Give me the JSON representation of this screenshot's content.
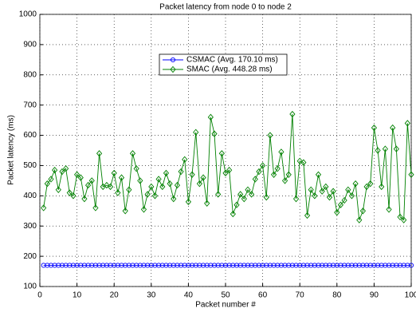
{
  "chart_data": {
    "type": "line",
    "title": "Packet latency from node 0 to node 2",
    "x_label": "Packet number #",
    "y_label": "Packet latency (ms)",
    "x": [
      1,
      2,
      3,
      4,
      5,
      6,
      7,
      8,
      9,
      10,
      11,
      12,
      13,
      14,
      15,
      16,
      17,
      18,
      19,
      20,
      21,
      22,
      23,
      24,
      25,
      26,
      27,
      28,
      29,
      30,
      31,
      32,
      33,
      34,
      35,
      36,
      37,
      38,
      39,
      40,
      41,
      42,
      43,
      44,
      45,
      46,
      47,
      48,
      49,
      50,
      51,
      52,
      53,
      54,
      55,
      56,
      57,
      58,
      59,
      60,
      61,
      62,
      63,
      64,
      65,
      66,
      67,
      68,
      69,
      70,
      71,
      72,
      73,
      74,
      75,
      76,
      77,
      78,
      79,
      80,
      81,
      82,
      83,
      84,
      85,
      86,
      87,
      88,
      89,
      90,
      91,
      92,
      93,
      94,
      95,
      96,
      97,
      98,
      99,
      100
    ],
    "series": [
      {
        "name": "CSMAC (Avg. 170.10 ms)",
        "color": "#0000ff",
        "marker": "circle",
        "values": [
          170.1,
          170.1,
          170.1,
          170.1,
          170.1,
          170.1,
          170.1,
          170.1,
          170.1,
          170.1,
          170.1,
          170.1,
          170.1,
          170.1,
          170.1,
          170.1,
          170.1,
          170.1,
          170.1,
          170.1,
          170.1,
          170.1,
          170.1,
          170.1,
          170.1,
          170.1,
          170.1,
          170.1,
          170.1,
          170.1,
          170.1,
          170.1,
          170.1,
          170.1,
          170.1,
          170.1,
          170.1,
          170.1,
          170.1,
          170.1,
          170.1,
          170.1,
          170.1,
          170.1,
          170.1,
          170.1,
          170.1,
          170.1,
          170.1,
          170.1,
          170.1,
          170.1,
          170.1,
          170.1,
          170.1,
          170.1,
          170.1,
          170.1,
          170.1,
          170.1,
          170.1,
          170.1,
          170.1,
          170.1,
          170.1,
          170.1,
          170.1,
          170.1,
          170.1,
          170.1,
          170.1,
          170.1,
          170.1,
          170.1,
          170.1,
          170.1,
          170.1,
          170.1,
          170.1,
          170.1,
          170.1,
          170.1,
          170.1,
          170.1,
          170.1,
          170.1,
          170.1,
          170.1,
          170.1,
          170.1,
          170.1,
          170.1,
          170.1,
          170.1,
          170.1,
          170.1,
          170.1,
          170.1,
          170.1,
          170.1
        ]
      },
      {
        "name": "SMAC (Avg. 448.28 ms)",
        "color": "#008000",
        "marker": "diamond",
        "values": [
          360,
          440,
          455,
          485,
          420,
          480,
          490,
          410,
          400,
          470,
          460,
          390,
          435,
          450,
          360,
          540,
          430,
          435,
          430,
          475,
          410,
          460,
          350,
          420,
          540,
          490,
          450,
          355,
          405,
          430,
          400,
          455,
          430,
          475,
          440,
          390,
          435,
          480,
          520,
          380,
          470,
          610,
          440,
          460,
          375,
          660,
          605,
          405,
          540,
          475,
          485,
          340,
          370,
          405,
          390,
          420,
          405,
          455,
          480,
          500,
          395,
          600,
          470,
          490,
          545,
          450,
          470,
          670,
          390,
          515,
          510,
          335,
          420,
          400,
          470,
          415,
          430,
          395,
          415,
          345,
          370,
          385,
          420,
          400,
          440,
          320,
          350,
          430,
          440,
          625,
          550,
          430,
          555,
          355,
          625,
          555,
          330,
          320,
          640,
          470
        ]
      }
    ],
    "xlim": [
      0,
      100
    ],
    "xticks": [
      0,
      10,
      20,
      30,
      40,
      50,
      60,
      70,
      80,
      90,
      100
    ],
    "ylim": [
      100,
      1000
    ],
    "yticks": [
      100,
      200,
      300,
      400,
      500,
      600,
      700,
      800,
      900,
      1000
    ],
    "grid": true,
    "legend": "top-center"
  }
}
